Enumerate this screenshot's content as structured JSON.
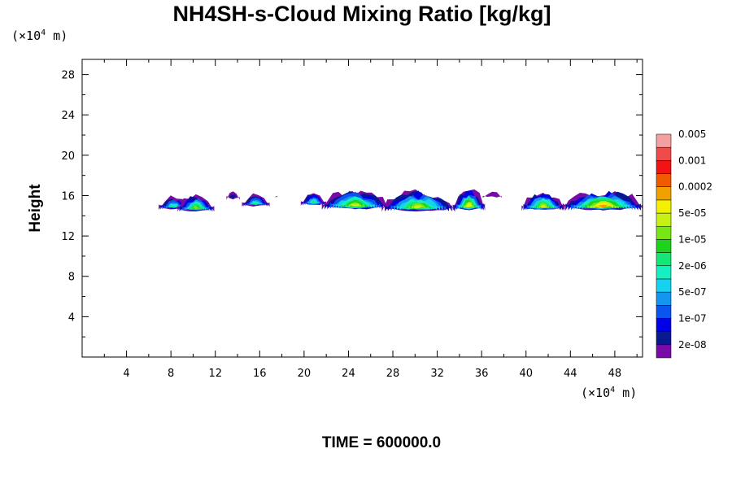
{
  "chart_data": {
    "type": "heatmap",
    "title": "NH4SH-s-Cloud Mixing Ratio [kg/kg]",
    "ylabel": "Height",
    "xlabel": "",
    "x_unit": "(×10",
    "x_unit_exp": "4",
    "x_unit_tail": " m)",
    "y_unit": "(×10",
    "y_unit_exp": "4",
    "y_unit_tail": " m)",
    "xlim": [
      0,
      50.5
    ],
    "ylim": [
      0,
      29.5
    ],
    "xticks": [
      4,
      8,
      12,
      16,
      20,
      24,
      28,
      32,
      36,
      40,
      44,
      48
    ],
    "yticks": [
      4,
      8,
      12,
      16,
      20,
      24,
      28
    ],
    "footer": "TIME = 600000.0",
    "colorbar": {
      "colors": [
        "#7a0aa8",
        "#0a1890",
        "#0000e6",
        "#0a55f0",
        "#1496f0",
        "#14d2f0",
        "#14f0c0",
        "#14e678",
        "#1ed21e",
        "#78e614",
        "#c8f014",
        "#f0f000",
        "#f0a000",
        "#f05a00",
        "#f01414",
        "#f04a4a",
        "#f5a0a0"
      ],
      "labels": [
        "2e-08",
        "1e-07",
        "5e-07",
        "2e-06",
        "1e-05",
        "5e-05",
        "0.0002",
        "0.001",
        "0.005"
      ]
    },
    "clouds": [
      {
        "x0": 6.9,
        "x1": 9.6,
        "ytop": 16.1,
        "ybot": 14.6,
        "peak": 8
      },
      {
        "x0": 8.6,
        "x1": 11.9,
        "ytop": 16.3,
        "ybot": 14.4,
        "peak": 10
      },
      {
        "x0": 13.0,
        "x1": 14.2,
        "ytop": 16.6,
        "ybot": 15.6,
        "peak": 3
      },
      {
        "x0": 14.4,
        "x1": 16.9,
        "ytop": 16.3,
        "ybot": 14.9,
        "peak": 8
      },
      {
        "x0": 17.4,
        "x1": 17.6,
        "ytop": 16.0,
        "ybot": 15.8,
        "peak": 1
      },
      {
        "x0": 19.7,
        "x1": 22.0,
        "ytop": 16.5,
        "ybot": 15.0,
        "peak": 8
      },
      {
        "x0": 21.6,
        "x1": 27.6,
        "ytop": 16.8,
        "ybot": 14.6,
        "peak": 11
      },
      {
        "x0": 27.0,
        "x1": 33.6,
        "ytop": 16.7,
        "ybot": 14.4,
        "peak": 11
      },
      {
        "x0": 33.4,
        "x1": 36.3,
        "ytop": 16.9,
        "ybot": 14.5,
        "peak": 12
      },
      {
        "x0": 36.1,
        "x1": 37.8,
        "ytop": 16.4,
        "ybot": 15.8,
        "peak": 1
      },
      {
        "x0": 39.6,
        "x1": 43.5,
        "ytop": 16.6,
        "ybot": 14.5,
        "peak": 11
      },
      {
        "x0": 43.3,
        "x1": 50.6,
        "ytop": 16.8,
        "ybot": 14.5,
        "peak": 13
      }
    ]
  }
}
